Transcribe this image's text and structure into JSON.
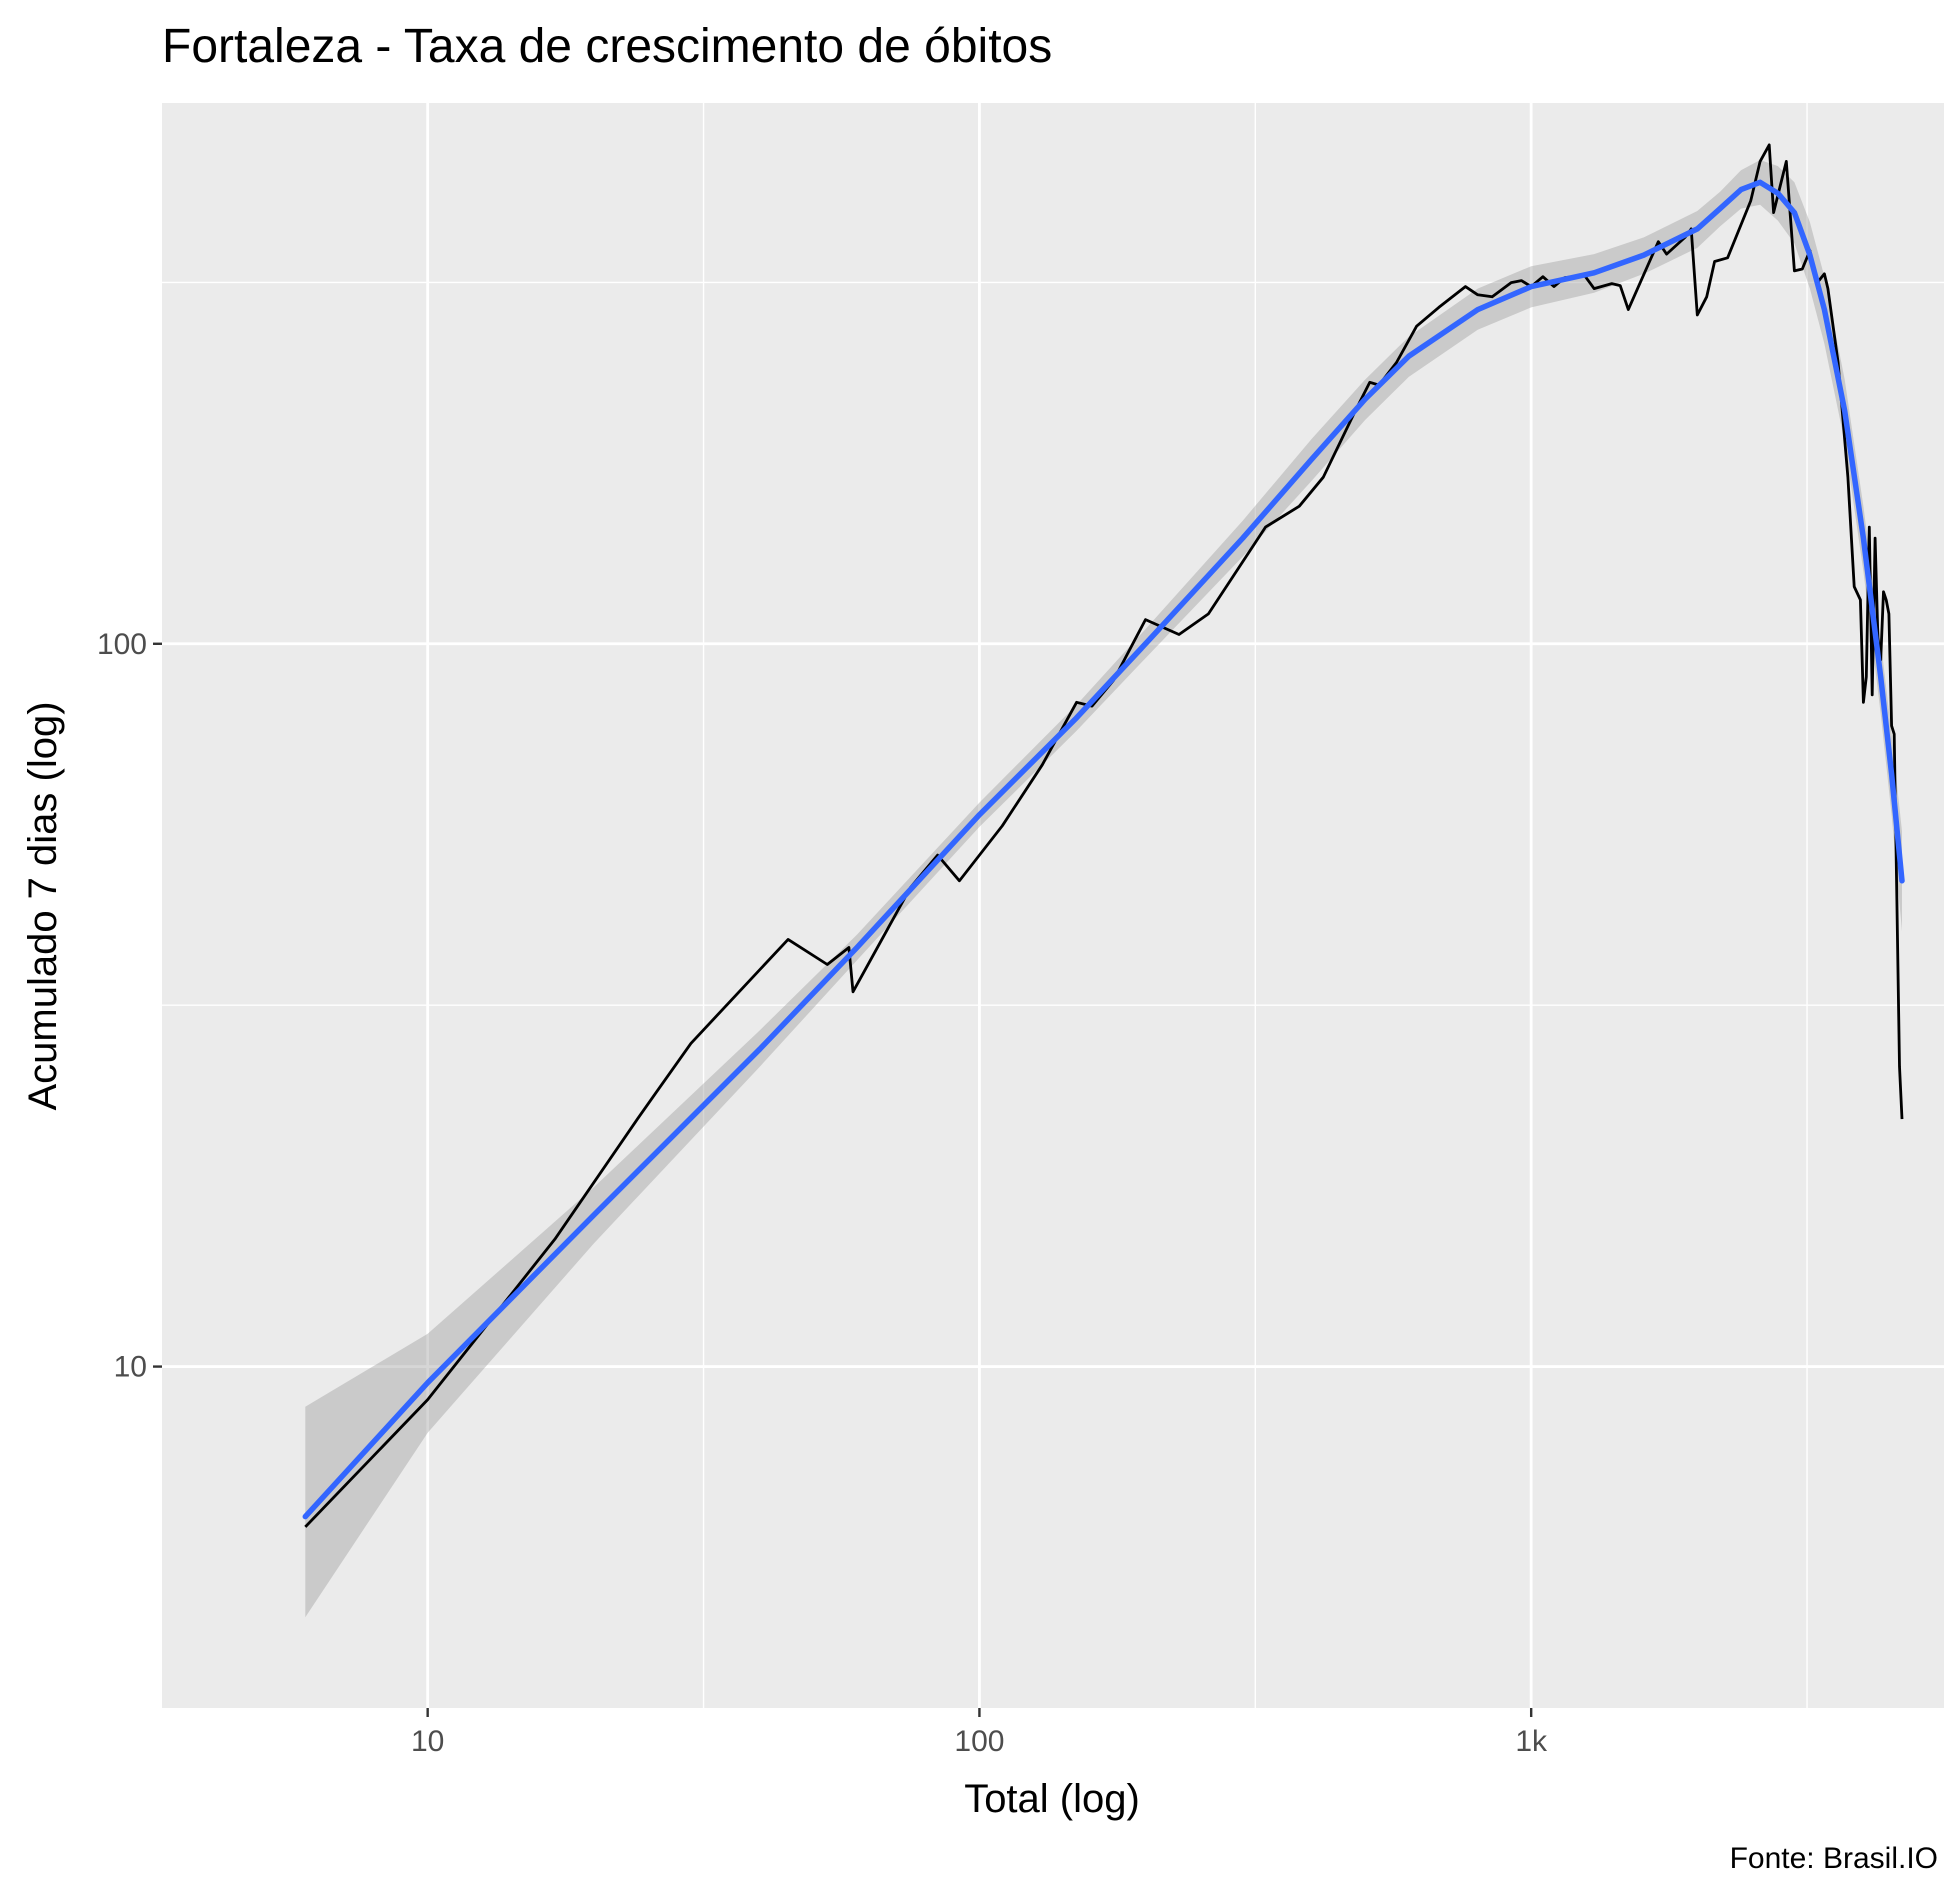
{
  "chart_data": {
    "type": "line",
    "title": "Fortaleza - Taxa de crescimento de óbitos",
    "xlabel": "Total (log)",
    "ylabel": "Acumulado 7 dias (log)",
    "caption": "Fonte: Brasil.IO",
    "x_scale": "log10",
    "y_scale": "log10",
    "xlim": [
      3.3,
      5600
    ],
    "ylim": [
      3.37,
      560
    ],
    "x_ticks": [
      {
        "value": 10,
        "label": "10"
      },
      {
        "value": 100,
        "label": "100"
      },
      {
        "value": 1000,
        "label": "1k"
      }
    ],
    "y_ticks": [
      {
        "value": 10,
        "label": "10"
      },
      {
        "value": 100,
        "label": "100"
      }
    ],
    "grid": true,
    "background": "#EBEBEB",
    "series": [
      {
        "kind": "observed",
        "color": "#000000",
        "points": [
          [
            6,
            6
          ],
          [
            10,
            9
          ],
          [
            17,
            15
          ],
          [
            24,
            22
          ],
          [
            26,
            24
          ],
          [
            30,
            28
          ],
          [
            45,
            39
          ],
          [
            53,
            36
          ],
          [
            58,
            38
          ],
          [
            59,
            33
          ],
          [
            75,
            46
          ],
          [
            84,
            51
          ],
          [
            92,
            47
          ],
          [
            110,
            56
          ],
          [
            130,
            68
          ],
          [
            150,
            83
          ],
          [
            160,
            82
          ],
          [
            175,
            89
          ],
          [
            200,
            108
          ],
          [
            230,
            103
          ],
          [
            260,
            110
          ],
          [
            330,
            145
          ],
          [
            380,
            155
          ],
          [
            420,
            170
          ],
          [
            480,
            210
          ],
          [
            510,
            230
          ],
          [
            530,
            228
          ],
          [
            570,
            245
          ],
          [
            620,
            275
          ],
          [
            680,
            292
          ],
          [
            760,
            312
          ],
          [
            800,
            304
          ],
          [
            850,
            302
          ],
          [
            920,
            316
          ],
          [
            960,
            318
          ],
          [
            1000,
            312
          ],
          [
            1050,
            322
          ],
          [
            1100,
            312
          ],
          [
            1150,
            321
          ],
          [
            1250,
            323
          ],
          [
            1300,
            310
          ],
          [
            1400,
            315
          ],
          [
            1450,
            313
          ],
          [
            1500,
            290
          ],
          [
            1700,
            360
          ],
          [
            1760,
            346
          ],
          [
            1900,
            365
          ],
          [
            1950,
            375
          ],
          [
            2000,
            285
          ],
          [
            2080,
            302
          ],
          [
            2150,
            338
          ],
          [
            2270,
            342
          ],
          [
            2500,
            410
          ],
          [
            2600,
            465
          ],
          [
            2700,
            490
          ],
          [
            2750,
            395
          ],
          [
            2900,
            465
          ],
          [
            3000,
            328
          ],
          [
            3100,
            330
          ],
          [
            3200,
            350
          ],
          [
            3300,
            316
          ],
          [
            3400,
            325
          ],
          [
            3450,
            310
          ],
          [
            3600,
            245
          ],
          [
            3750,
            170
          ],
          [
            3850,
            120
          ],
          [
            3950,
            115
          ],
          [
            4000,
            83
          ],
          [
            4050,
            90
          ],
          [
            4100,
            145
          ],
          [
            4150,
            85
          ],
          [
            4200,
            140
          ],
          [
            4250,
            102
          ],
          [
            4300,
            95
          ],
          [
            4350,
            118
          ],
          [
            4400,
            115
          ],
          [
            4450,
            110
          ],
          [
            4500,
            77
          ],
          [
            4550,
            75
          ],
          [
            4600,
            44
          ],
          [
            4650,
            26
          ],
          [
            4700,
            22
          ]
        ]
      },
      {
        "kind": "smooth",
        "color": "#3366FF",
        "points": [
          [
            6,
            6.2
          ],
          [
            10,
            9.5
          ],
          [
            20,
            16.2
          ],
          [
            40,
            27.5
          ],
          [
            60,
            38
          ],
          [
            100,
            58
          ],
          [
            150,
            79
          ],
          [
            200,
            100
          ],
          [
            300,
            140
          ],
          [
            400,
            180
          ],
          [
            500,
            218
          ],
          [
            600,
            250
          ],
          [
            800,
            290
          ],
          [
            1000,
            312
          ],
          [
            1300,
            326
          ],
          [
            1600,
            345
          ],
          [
            2000,
            375
          ],
          [
            2200,
            400
          ],
          [
            2400,
            425
          ],
          [
            2600,
            435
          ],
          [
            2800,
            420
          ],
          [
            3000,
            395
          ],
          [
            3200,
            345
          ],
          [
            3400,
            290
          ],
          [
            3700,
            210
          ],
          [
            4000,
            140
          ],
          [
            4300,
            90
          ],
          [
            4500,
            66
          ],
          [
            4700,
            47
          ]
        ]
      },
      {
        "kind": "confidence-band",
        "color": "#999999",
        "points": [
          [
            6,
            4.5,
            8.8
          ],
          [
            10,
            8.1,
            11.1
          ],
          [
            20,
            14.8,
            17.7
          ],
          [
            40,
            26,
            29.2
          ],
          [
            60,
            36.5,
            39.6
          ],
          [
            100,
            55.8,
            60.3
          ],
          [
            150,
            75.8,
            82.3
          ],
          [
            200,
            95.5,
            104.8
          ],
          [
            300,
            132,
            148
          ],
          [
            400,
            168,
            192
          ],
          [
            500,
            204,
            232
          ],
          [
            600,
            234,
            266
          ],
          [
            800,
            272,
            310
          ],
          [
            1000,
            292,
            333
          ],
          [
            1300,
            306,
            346
          ],
          [
            1600,
            325,
            365
          ],
          [
            2000,
            353,
            397
          ],
          [
            2200,
            378,
            422
          ],
          [
            2400,
            400,
            452
          ],
          [
            2600,
            405,
            467
          ],
          [
            2800,
            385,
            458
          ],
          [
            3000,
            358,
            435
          ],
          [
            3200,
            310,
            383
          ],
          [
            3400,
            260,
            322
          ],
          [
            3700,
            190,
            232
          ],
          [
            4000,
            126,
            155
          ],
          [
            4300,
            80,
            101
          ],
          [
            4500,
            58,
            75
          ],
          [
            4700,
            40,
            55
          ]
        ]
      }
    ]
  }
}
